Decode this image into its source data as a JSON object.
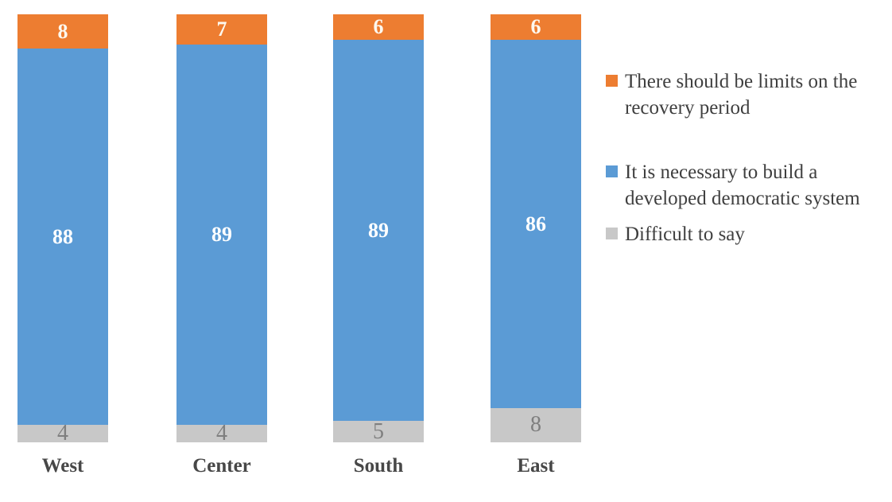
{
  "background_color": "#ffffff",
  "chart_data": {
    "type": "bar",
    "subtype": "stacked-column-100",
    "title": "",
    "xlabel": "",
    "ylabel": "",
    "ylim": [
      0,
      100
    ],
    "grid": false,
    "axes_visible": false,
    "legend_position": "right",
    "categories": [
      "West",
      "Center",
      "South",
      "East"
    ],
    "series_top_to_bottom_stack": [
      {
        "name": "There should be limits on the recovery period",
        "values": [
          8,
          7,
          6,
          6
        ],
        "color": "#ed7d31",
        "label_color": "#fdf8ef",
        "label_weight": "bold"
      },
      {
        "name": "It is necessary to build a developed democratic system",
        "values": [
          88,
          89,
          89,
          86
        ],
        "color": "#5b9bd5",
        "label_color": "#ffffff",
        "label_weight": "bold"
      },
      {
        "name": "Difficult to say",
        "values": [
          4,
          4,
          5,
          8
        ],
        "color": "#c8c8c8",
        "label_color": "#7f7f7f",
        "label_weight": "normal"
      }
    ],
    "category_label_color": "#474747"
  },
  "legend": {
    "text_color": "#3f3f3f",
    "items": [
      {
        "label": "There should be limits on the recovery period",
        "color": "#ed7d31"
      },
      {
        "label": "It is necessary to build a developed democratic system",
        "color": "#5b9bd5"
      },
      {
        "label": "Difficult to say",
        "color": "#c8c8c8"
      }
    ]
  }
}
